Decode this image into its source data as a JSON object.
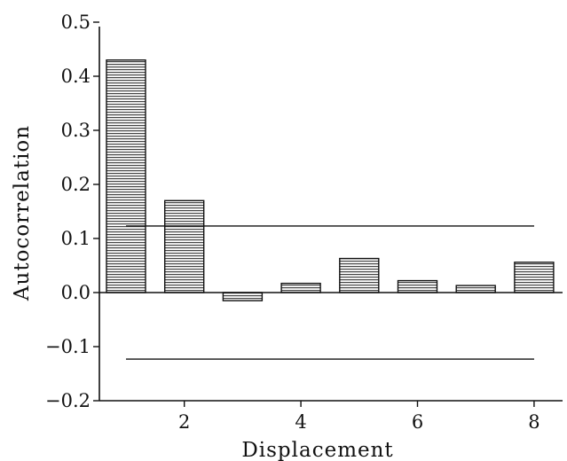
{
  "chart_data": {
    "type": "bar",
    "title": "",
    "xlabel": "Displacement",
    "ylabel": "Autocorrelation",
    "x": [
      1,
      2,
      3,
      4,
      5,
      6,
      7,
      8
    ],
    "values": [
      0.43,
      0.17,
      -0.015,
      0.017,
      0.063,
      0.022,
      0.013,
      0.056
    ],
    "xticks": [
      2,
      4,
      6,
      8
    ],
    "yticks": [
      -0.2,
      -0.1,
      0.0,
      0.1,
      0.2,
      0.3,
      0.4,
      0.5
    ],
    "ytick_labels": [
      "−0.2",
      "−0.1",
      "0.0",
      "0.1",
      "0.2",
      "0.3",
      "0.4",
      "0.5"
    ],
    "xlim": [
      0.5,
      8.5
    ],
    "ylim": [
      -0.2,
      0.5
    ],
    "reference_lines": [
      0.123,
      -0.123
    ],
    "bar_fill": "hatched-horizontal",
    "grid": false,
    "legend": "none"
  }
}
